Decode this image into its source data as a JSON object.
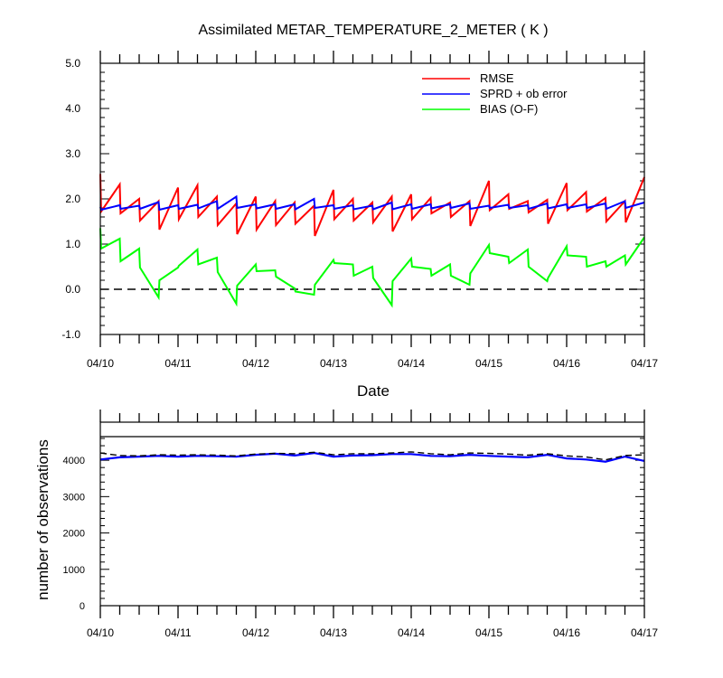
{
  "chart_data": [
    {
      "type": "line",
      "title": "Assimilated METAR_TEMPERATURE_2_METER ( K )",
      "xlabel": "Date",
      "ylabel": "",
      "xlim": [
        "04/10",
        "04/17"
      ],
      "ylim": [
        -1.0,
        5.0
      ],
      "x_tick_labels": [
        "04/10",
        "04/11",
        "04/12",
        "04/13",
        "04/14",
        "04/15",
        "04/16",
        "04/17"
      ],
      "y_tick_labels": [
        "-1.0",
        "0.0",
        "1.0",
        "2.0",
        "3.0",
        "4.0",
        "5.0"
      ],
      "legend_position": "top-right",
      "reference_line": {
        "y": 0.0,
        "style": "dashed",
        "color": "#000000"
      },
      "series": [
        {
          "name": "RMSE",
          "color": "#ff0000",
          "x": [
            0,
            0.01,
            0.25,
            0.26,
            0.5,
            0.51,
            0.75,
            0.76,
            1,
            1.01,
            1.25,
            1.26,
            1.5,
            1.51,
            1.75,
            1.76,
            2,
            2.01,
            2.25,
            2.26,
            2.5,
            2.51,
            2.75,
            2.76,
            3,
            3.01,
            3.25,
            3.26,
            3.5,
            3.51,
            3.75,
            3.76,
            4,
            4.01,
            4.25,
            4.26,
            4.5,
            4.51,
            4.75,
            4.76,
            5,
            5.01,
            5.25,
            5.26,
            5.5,
            5.51,
            5.75,
            5.76,
            6,
            6.01,
            6.25,
            6.26,
            6.5,
            6.51,
            6.75,
            6.76,
            7
          ],
          "values": [
            2.55,
            1.72,
            2.32,
            1.68,
            2.0,
            1.52,
            1.95,
            1.32,
            2.25,
            1.55,
            2.3,
            1.6,
            2.05,
            1.42,
            1.9,
            1.22,
            2.05,
            1.32,
            1.95,
            1.42,
            1.92,
            1.45,
            1.85,
            1.18,
            2.2,
            1.55,
            2.0,
            1.52,
            1.92,
            1.48,
            2.05,
            1.28,
            2.1,
            1.55,
            2.02,
            1.68,
            1.92,
            1.6,
            1.95,
            1.4,
            2.4,
            1.75,
            2.1,
            1.78,
            1.95,
            1.7,
            1.98,
            1.45,
            2.35,
            1.75,
            2.15,
            1.72,
            2.02,
            1.5,
            1.95,
            1.48,
            2.48
          ]
        },
        {
          "name": "SPRD + ob error",
          "color": "#0000ff",
          "x": [
            0,
            0.01,
            0.25,
            0.26,
            0.5,
            0.51,
            0.75,
            0.76,
            1,
            1.01,
            1.25,
            1.26,
            1.5,
            1.51,
            1.75,
            1.76,
            2,
            2.01,
            2.25,
            2.26,
            2.5,
            2.51,
            2.75,
            2.76,
            3,
            3.01,
            3.25,
            3.26,
            3.5,
            3.51,
            3.75,
            3.76,
            4,
            4.01,
            4.25,
            4.26,
            4.5,
            4.51,
            4.75,
            4.76,
            5,
            5.01,
            5.25,
            5.26,
            5.5,
            5.51,
            5.75,
            5.76,
            6,
            6.01,
            6.25,
            6.26,
            6.5,
            6.51,
            6.75,
            6.76,
            7
          ],
          "values": [
            1.82,
            1.76,
            1.86,
            1.78,
            1.85,
            1.78,
            1.93,
            1.76,
            1.86,
            1.78,
            1.87,
            1.79,
            1.95,
            1.78,
            2.05,
            1.8,
            1.88,
            1.79,
            1.88,
            1.78,
            1.88,
            1.77,
            2.0,
            1.8,
            1.86,
            1.78,
            1.86,
            1.77,
            1.85,
            1.77,
            1.92,
            1.77,
            1.88,
            1.78,
            1.88,
            1.79,
            1.88,
            1.8,
            1.9,
            1.78,
            1.85,
            1.8,
            1.87,
            1.8,
            1.86,
            1.78,
            1.9,
            1.79,
            1.88,
            1.8,
            1.88,
            1.8,
            1.9,
            1.78,
            1.95,
            1.8,
            1.92
          ]
        },
        {
          "name": "BIAS (O-F)",
          "color": "#00ff00",
          "x": [
            0,
            0.01,
            0.25,
            0.26,
            0.5,
            0.51,
            0.75,
            0.76,
            1,
            1.01,
            1.25,
            1.26,
            1.5,
            1.51,
            1.75,
            1.76,
            2,
            2.01,
            2.25,
            2.26,
            2.5,
            2.51,
            2.75,
            2.76,
            3,
            3.01,
            3.25,
            3.26,
            3.5,
            3.51,
            3.75,
            3.76,
            4,
            4.01,
            4.25,
            4.26,
            4.5,
            4.51,
            4.75,
            4.76,
            5,
            5.01,
            5.25,
            5.26,
            5.5,
            5.51,
            5.75,
            5.76,
            6,
            6.01,
            6.25,
            6.26,
            6.5,
            6.51,
            6.75,
            6.76,
            7
          ],
          "values": [
            1.35,
            0.9,
            1.12,
            0.62,
            0.9,
            0.48,
            -0.18,
            0.2,
            0.48,
            0.52,
            0.88,
            0.55,
            0.7,
            0.38,
            -0.32,
            0.08,
            0.55,
            0.4,
            0.42,
            0.28,
            0.02,
            -0.05,
            -0.12,
            0.1,
            0.65,
            0.58,
            0.55,
            0.3,
            0.5,
            0.25,
            -0.35,
            0.18,
            0.68,
            0.5,
            0.45,
            0.3,
            0.55,
            0.3,
            0.1,
            0.35,
            0.98,
            0.8,
            0.72,
            0.58,
            0.88,
            0.5,
            0.18,
            0.25,
            0.95,
            0.75,
            0.72,
            0.5,
            0.62,
            0.5,
            0.75,
            0.55,
            1.15
          ]
        }
      ]
    },
    {
      "type": "line",
      "title": "",
      "xlabel": "",
      "ylabel": "number of observations",
      "xlim": [
        "04/10",
        "04/17"
      ],
      "ylim": [
        0,
        4650
      ],
      "x_tick_labels": [
        "04/10",
        "04/11",
        "04/12",
        "04/13",
        "04/14",
        "04/15",
        "04/16",
        "04/17"
      ],
      "y_tick_labels": [
        "0",
        "1000",
        "2000",
        "3000",
        "4000"
      ],
      "series": [
        {
          "color": "#0000ff",
          "style": "solid",
          "x": [
            0,
            0.25,
            0.5,
            0.75,
            1,
            1.25,
            1.5,
            1.75,
            2,
            2.25,
            2.5,
            2.75,
            3,
            3.25,
            3.5,
            3.75,
            4,
            4.25,
            4.5,
            4.75,
            5,
            5.25,
            5.5,
            5.75,
            6,
            6.25,
            6.5,
            6.75,
            7
          ],
          "values": [
            4020,
            4080,
            4100,
            4120,
            4100,
            4120,
            4110,
            4100,
            4150,
            4180,
            4130,
            4200,
            4100,
            4130,
            4140,
            4170,
            4170,
            4120,
            4110,
            4150,
            4120,
            4100,
            4080,
            4150,
            4050,
            4020,
            3960,
            4100,
            3980
          ]
        },
        {
          "color": "#000000",
          "style": "dashed",
          "x": [
            0,
            0.25,
            0.5,
            0.75,
            1,
            1.25,
            1.5,
            1.75,
            2,
            2.25,
            2.5,
            2.75,
            3,
            3.25,
            3.5,
            3.75,
            4,
            4.25,
            4.5,
            4.75,
            5,
            5.25,
            5.5,
            5.75,
            6,
            6.25,
            6.5,
            6.75,
            7
          ],
          "values": [
            4200,
            4130,
            4120,
            4150,
            4140,
            4150,
            4140,
            4120,
            4170,
            4190,
            4180,
            4220,
            4150,
            4180,
            4180,
            4200,
            4230,
            4180,
            4150,
            4200,
            4190,
            4170,
            4140,
            4180,
            4120,
            4090,
            4010,
            4130,
            4150
          ]
        }
      ]
    }
  ]
}
